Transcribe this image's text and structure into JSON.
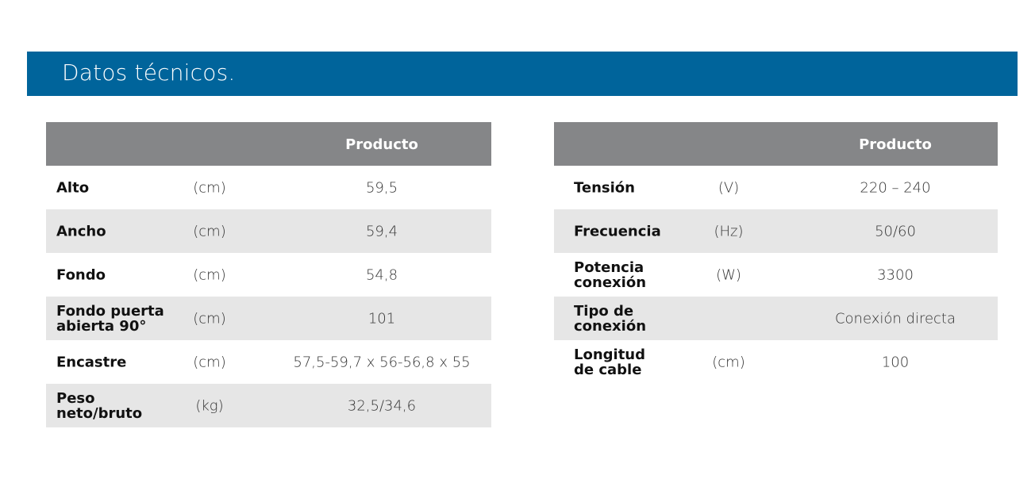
{
  "title": "Datos técnicos.",
  "colors": {
    "banner": "#00649b",
    "header": "#858688",
    "alt_row": "#e6e6e6"
  },
  "left_table": {
    "header": "Producto",
    "rows": [
      {
        "label": "Alto",
        "unit": "(cm)",
        "value": "59,5"
      },
      {
        "label": "Ancho",
        "unit": "(cm)",
        "value": "59,4"
      },
      {
        "label": "Fondo",
        "unit": "(cm)",
        "value": "54,8"
      },
      {
        "label": "Fondo puerta\nabierta 90°",
        "unit": "(cm)",
        "value": "101"
      },
      {
        "label": "Encastre",
        "unit": "(cm)",
        "value": "57,5-59,7 x 56-56,8 x 55"
      },
      {
        "label": "Peso\nneto/bruto",
        "unit": "(kg)",
        "value": "32,5/34,6"
      }
    ]
  },
  "right_table": {
    "header": "Producto",
    "rows": [
      {
        "label": "Tensión",
        "unit": "(V)",
        "value": "220 – 240"
      },
      {
        "label": "Frecuencia",
        "unit": "(Hz)",
        "value": "50/60"
      },
      {
        "label": "Potencia\nconexión",
        "unit": "(W)",
        "value": "3300"
      },
      {
        "label": "Tipo de\nconexión",
        "unit": "",
        "value": "Conexión directa"
      },
      {
        "label": "Longitud\nde cable",
        "unit": "(cm)",
        "value": "100"
      }
    ]
  }
}
